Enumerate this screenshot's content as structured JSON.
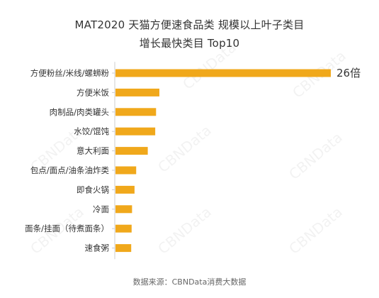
{
  "chart_data": {
    "type": "bar",
    "orientation": "horizontal",
    "title": "MAT2020 天猫方便速食品类 规模以上叶子类目",
    "subtitle": "增长最快类目 Top10",
    "categories": [
      "方便粉丝/米线/螺蛳粉",
      "方便米饭",
      "肉制品/肉类罐头",
      "水饺/馄饨",
      "意大利面",
      "包点/面点/油条油炸类",
      "即食火锅",
      "冷面",
      "面条/挂面（待煮面条）",
      "速食粥"
    ],
    "values": [
      26,
      5.3,
      4.9,
      4.8,
      3.9,
      2.5,
      2.3,
      2.0,
      1.95,
      1.9
    ],
    "data_labels": [
      "26倍",
      "",
      "",
      "",
      "",
      "",
      "",
      "",
      "",
      ""
    ],
    "xlabel": "",
    "ylabel": "",
    "xlim": [
      0,
      26
    ],
    "grid": false,
    "legend": "none",
    "bar_color": "#f0a81b",
    "axis_color": "#cccccc"
  },
  "source": "数据来源：CBNData消费大数据",
  "watermark": "CBNData"
}
